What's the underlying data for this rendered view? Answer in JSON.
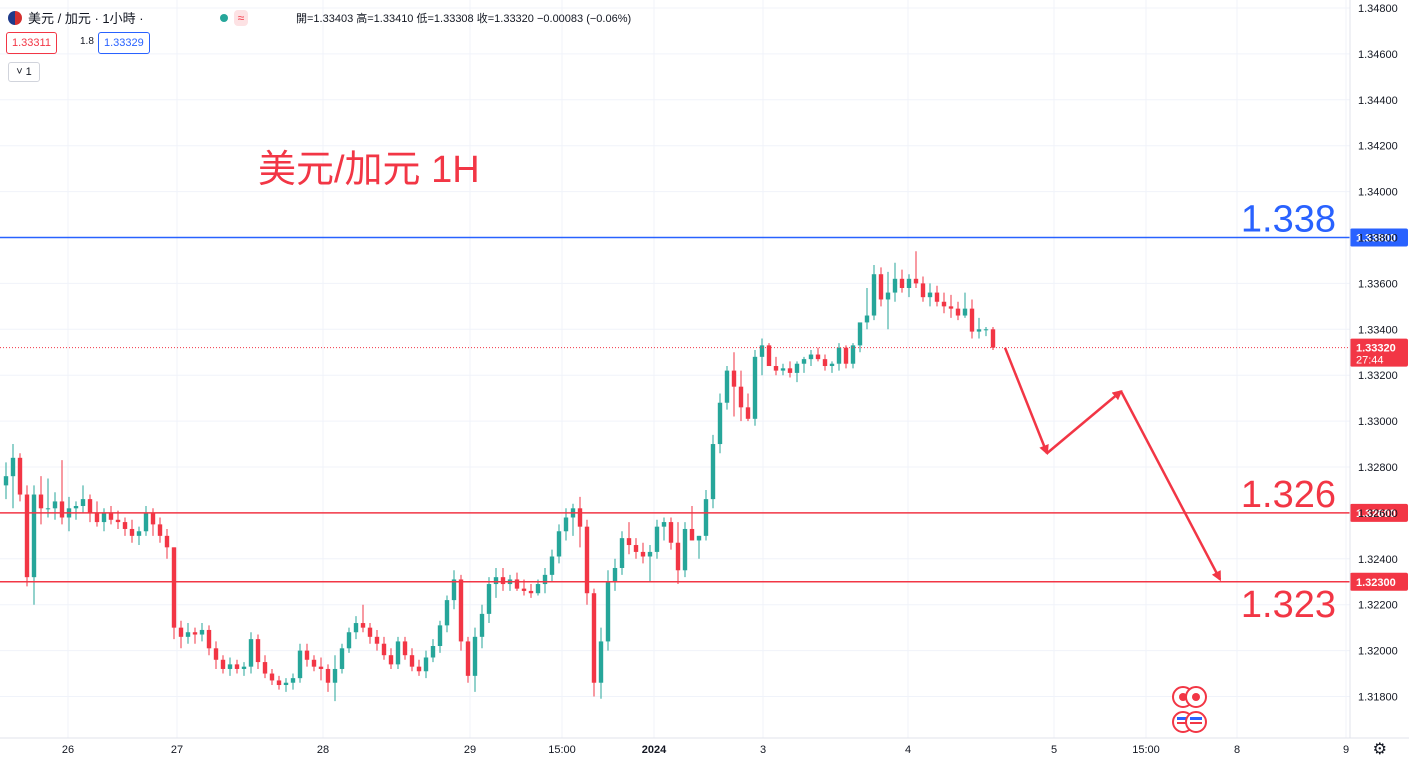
{
  "header": {
    "symbol": "美元 / 加元 · 1小時 ·",
    "ohlc_text": "開=1.33403 高=1.33410 低=1.33308 收=1.33320 −0.00083 (−0.06%)",
    "bid": "1.33311",
    "spread": "1.8",
    "ask": "1.33329",
    "toggle": "˅ 1"
  },
  "colors": {
    "up": "#26a69a",
    "down": "#f23645",
    "blue": "#2962ff",
    "grid": "#f0f3fa"
  },
  "chart_data": {
    "type": "candlestick",
    "title": "美元/加元 1H",
    "ylim": [
      1.317,
      1.348
    ],
    "yticks": [
      1.318,
      1.32,
      1.322,
      1.324,
      1.326,
      1.328,
      1.33,
      1.332,
      1.334,
      1.336,
      1.338,
      1.34,
      1.342,
      1.344,
      1.346,
      1.348
    ],
    "ytick_labels": [
      "1.31800",
      "1.32000",
      "1.32200",
      "1.32400",
      "1.32600",
      "1.32800",
      "1.33000",
      "1.33200",
      "1.33400",
      "1.33600",
      "1.33800",
      "1.34000",
      "1.34200",
      "1.34400",
      "1.34600",
      "1.34800"
    ],
    "xticks": [
      "26",
      "27",
      "28",
      "29",
      "15:00",
      "2024",
      "3",
      "4",
      "5",
      "15:00",
      "8",
      "9"
    ],
    "horizontal_lines": [
      {
        "value": 1.338,
        "label": "1.338",
        "tag": "1.33800",
        "color": "#2962ff"
      },
      {
        "value": 1.326,
        "label": "1.326",
        "tag": "1.32600",
        "color": "#f23645"
      },
      {
        "value": 1.323,
        "label": "1.323",
        "tag": "1.32300",
        "color": "#f23645"
      }
    ],
    "last_price": {
      "value": 1.3332,
      "tag": "1.33320",
      "countdown": "27:44"
    },
    "projection": [
      [
        1.3332,
        1.3286,
        1.3313,
        1.3231
      ]
    ],
    "candles": [
      [
        1.3272,
        1.3282,
        1.3266,
        1.3276
      ],
      [
        1.3276,
        1.329,
        1.3262,
        1.3284
      ],
      [
        1.3284,
        1.3286,
        1.3265,
        1.3268
      ],
      [
        1.3268,
        1.3272,
        1.3228,
        1.3232
      ],
      [
        1.3232,
        1.3272,
        1.322,
        1.3268
      ],
      [
        1.3268,
        1.3276,
        1.3255,
        1.3262
      ],
      [
        1.3262,
        1.3275,
        1.3258,
        1.3262
      ],
      [
        1.3262,
        1.3269,
        1.3257,
        1.3265
      ],
      [
        1.3265,
        1.3283,
        1.3255,
        1.3258
      ],
      [
        1.3258,
        1.3267,
        1.3252,
        1.3262
      ],
      [
        1.3262,
        1.3265,
        1.3257,
        1.3263
      ],
      [
        1.3263,
        1.3272,
        1.326,
        1.3266
      ],
      [
        1.3266,
        1.3268,
        1.3256,
        1.326
      ],
      [
        1.326,
        1.3265,
        1.3254,
        1.3256
      ],
      [
        1.3256,
        1.3262,
        1.3252,
        1.326
      ],
      [
        1.326,
        1.3263,
        1.3255,
        1.3257
      ],
      [
        1.3257,
        1.3261,
        1.3253,
        1.3256
      ],
      [
        1.3256,
        1.3258,
        1.325,
        1.3253
      ],
      [
        1.3253,
        1.3257,
        1.3247,
        1.325
      ],
      [
        1.325,
        1.3254,
        1.3246,
        1.3252
      ],
      [
        1.3252,
        1.3263,
        1.325,
        1.326
      ],
      [
        1.326,
        1.3262,
        1.325,
        1.3255
      ],
      [
        1.3255,
        1.3258,
        1.3247,
        1.325
      ],
      [
        1.325,
        1.3253,
        1.324,
        1.3245
      ],
      [
        1.3245,
        1.3245,
        1.3205,
        1.321
      ],
      [
        1.321,
        1.3213,
        1.3201,
        1.3206
      ],
      [
        1.3206,
        1.3212,
        1.3203,
        1.3208
      ],
      [
        1.3208,
        1.321,
        1.3203,
        1.3207
      ],
      [
        1.3207,
        1.3212,
        1.3204,
        1.3209
      ],
      [
        1.3209,
        1.3211,
        1.3198,
        1.3201
      ],
      [
        1.3201,
        1.3204,
        1.3192,
        1.3196
      ],
      [
        1.3196,
        1.3198,
        1.319,
        1.3192
      ],
      [
        1.3192,
        1.3197,
        1.3189,
        1.3194
      ],
      [
        1.3194,
        1.3196,
        1.319,
        1.3192
      ],
      [
        1.3192,
        1.3195,
        1.3189,
        1.3193
      ],
      [
        1.3193,
        1.3208,
        1.319,
        1.3205
      ],
      [
        1.3205,
        1.3207,
        1.3192,
        1.3195
      ],
      [
        1.3195,
        1.3198,
        1.3188,
        1.319
      ],
      [
        1.319,
        1.3192,
        1.3185,
        1.3187
      ],
      [
        1.3187,
        1.3189,
        1.3183,
        1.3185
      ],
      [
        1.3185,
        1.3188,
        1.3182,
        1.3186
      ],
      [
        1.3186,
        1.319,
        1.3183,
        1.3188
      ],
      [
        1.3188,
        1.3203,
        1.3186,
        1.32
      ],
      [
        1.32,
        1.3203,
        1.3193,
        1.3196
      ],
      [
        1.3196,
        1.3198,
        1.3191,
        1.3193
      ],
      [
        1.3193,
        1.3197,
        1.3187,
        1.3192
      ],
      [
        1.3192,
        1.3194,
        1.3182,
        1.3186
      ],
      [
        1.3186,
        1.3198,
        1.3178,
        1.3192
      ],
      [
        1.3192,
        1.3203,
        1.319,
        1.3201
      ],
      [
        1.3201,
        1.321,
        1.3199,
        1.3208
      ],
      [
        1.3208,
        1.3215,
        1.3205,
        1.3212
      ],
      [
        1.3212,
        1.322,
        1.3208,
        1.321
      ],
      [
        1.321,
        1.3212,
        1.3203,
        1.3206
      ],
      [
        1.3206,
        1.3209,
        1.32,
        1.3203
      ],
      [
        1.3203,
        1.3206,
        1.3196,
        1.3198
      ],
      [
        1.3198,
        1.3201,
        1.3192,
        1.3194
      ],
      [
        1.3194,
        1.3206,
        1.3192,
        1.3204
      ],
      [
        1.3204,
        1.3206,
        1.3196,
        1.3198
      ],
      [
        1.3198,
        1.3201,
        1.3191,
        1.3193
      ],
      [
        1.3193,
        1.3196,
        1.3189,
        1.3191
      ],
      [
        1.3191,
        1.32,
        1.3188,
        1.3197
      ],
      [
        1.3197,
        1.3205,
        1.3195,
        1.3202
      ],
      [
        1.3202,
        1.3213,
        1.3199,
        1.3211
      ],
      [
        1.3211,
        1.3224,
        1.3208,
        1.3222
      ],
      [
        1.3222,
        1.3235,
        1.3218,
        1.3231
      ],
      [
        1.3231,
        1.3233,
        1.32,
        1.3204
      ],
      [
        1.3204,
        1.3206,
        1.3186,
        1.3189
      ],
      [
        1.3189,
        1.321,
        1.3182,
        1.3206
      ],
      [
        1.3206,
        1.322,
        1.3201,
        1.3216
      ],
      [
        1.3216,
        1.3232,
        1.3212,
        1.3229
      ],
      [
        1.3229,
        1.3236,
        1.3223,
        1.3232
      ],
      [
        1.3232,
        1.3236,
        1.3226,
        1.3229
      ],
      [
        1.3229,
        1.3233,
        1.3226,
        1.3231
      ],
      [
        1.3231,
        1.3234,
        1.3226,
        1.3227
      ],
      [
        1.3227,
        1.3231,
        1.3224,
        1.3226
      ],
      [
        1.3226,
        1.3229,
        1.3223,
        1.3225
      ],
      [
        1.3225,
        1.3231,
        1.3224,
        1.3229
      ],
      [
        1.3229,
        1.3236,
        1.3225,
        1.3233
      ],
      [
        1.3233,
        1.3244,
        1.323,
        1.3241
      ],
      [
        1.3241,
        1.3255,
        1.3238,
        1.3252
      ],
      [
        1.3252,
        1.3262,
        1.3248,
        1.3258
      ],
      [
        1.3258,
        1.3264,
        1.325,
        1.3262
      ],
      [
        1.3262,
        1.3267,
        1.3245,
        1.3254
      ],
      [
        1.3254,
        1.3257,
        1.322,
        1.3225
      ],
      [
        1.3225,
        1.3227,
        1.318,
        1.3186
      ],
      [
        1.3186,
        1.321,
        1.3179,
        1.3204
      ],
      [
        1.3204,
        1.3235,
        1.32,
        1.323
      ],
      [
        1.323,
        1.324,
        1.3226,
        1.3236
      ],
      [
        1.3236,
        1.3252,
        1.3233,
        1.3249
      ],
      [
        1.3249,
        1.3256,
        1.3242,
        1.3246
      ],
      [
        1.3246,
        1.3249,
        1.324,
        1.3243
      ],
      [
        1.3243,
        1.3247,
        1.3238,
        1.3241
      ],
      [
        1.3241,
        1.3246,
        1.323,
        1.3243
      ],
      [
        1.3243,
        1.3257,
        1.324,
        1.3254
      ],
      [
        1.3254,
        1.3258,
        1.3248,
        1.3256
      ],
      [
        1.3256,
        1.3258,
        1.3244,
        1.3247
      ],
      [
        1.3247,
        1.3256,
        1.3229,
        1.3235
      ],
      [
        1.3235,
        1.3256,
        1.3232,
        1.3253
      ],
      [
        1.3253,
        1.3263,
        1.3248,
        1.3248
      ],
      [
        1.3248,
        1.325,
        1.324,
        1.325
      ],
      [
        1.325,
        1.327,
        1.3248,
        1.3266
      ],
      [
        1.3266,
        1.3294,
        1.3262,
        1.329
      ],
      [
        1.329,
        1.3312,
        1.3286,
        1.3308
      ],
      [
        1.3308,
        1.3324,
        1.3305,
        1.3322
      ],
      [
        1.3322,
        1.333,
        1.3302,
        1.3315
      ],
      [
        1.3315,
        1.3322,
        1.33,
        1.3306
      ],
      [
        1.3306,
        1.3312,
        1.33,
        1.3301
      ],
      [
        1.3301,
        1.3331,
        1.3298,
        1.3328
      ],
      [
        1.3328,
        1.3336,
        1.332,
        1.3333
      ],
      [
        1.3333,
        1.3334,
        1.3324,
        1.3324
      ],
      [
        1.3324,
        1.3328,
        1.332,
        1.3322
      ],
      [
        1.3322,
        1.3325,
        1.332,
        1.3323
      ],
      [
        1.3323,
        1.3326,
        1.3319,
        1.3321
      ],
      [
        1.3321,
        1.3326,
        1.3317,
        1.3325
      ],
      [
        1.3325,
        1.3328,
        1.3321,
        1.3327
      ],
      [
        1.3327,
        1.3331,
        1.3324,
        1.3329
      ],
      [
        1.3329,
        1.3332,
        1.3326,
        1.3327
      ],
      [
        1.3327,
        1.3329,
        1.3322,
        1.3324
      ],
      [
        1.3324,
        1.3326,
        1.3321,
        1.3325
      ],
      [
        1.3325,
        1.3334,
        1.3322,
        1.3332
      ],
      [
        1.3332,
        1.3333,
        1.3323,
        1.3325
      ],
      [
        1.3325,
        1.3334,
        1.3323,
        1.3333
      ],
      [
        1.3333,
        1.3341,
        1.333,
        1.3343
      ],
      [
        1.3343,
        1.3358,
        1.334,
        1.3346
      ],
      [
        1.3346,
        1.3368,
        1.3344,
        1.3364
      ],
      [
        1.3364,
        1.3367,
        1.335,
        1.3353
      ],
      [
        1.3353,
        1.3365,
        1.334,
        1.3356
      ],
      [
        1.3356,
        1.3369,
        1.3352,
        1.3362
      ],
      [
        1.3362,
        1.3366,
        1.3356,
        1.3358
      ],
      [
        1.3358,
        1.3364,
        1.3354,
        1.3362
      ],
      [
        1.3362,
        1.3374,
        1.3358,
        1.336
      ],
      [
        1.336,
        1.3363,
        1.3352,
        1.3354
      ],
      [
        1.3354,
        1.336,
        1.335,
        1.3356
      ],
      [
        1.3356,
        1.3359,
        1.335,
        1.3352
      ],
      [
        1.3352,
        1.3356,
        1.3347,
        1.335
      ],
      [
        1.335,
        1.3355,
        1.3345,
        1.3349
      ],
      [
        1.3349,
        1.3352,
        1.3344,
        1.3346
      ],
      [
        1.3346,
        1.3356,
        1.3345,
        1.3349
      ],
      [
        1.3349,
        1.3353,
        1.3336,
        1.3339
      ],
      [
        1.3339,
        1.3345,
        1.3336,
        1.334
      ],
      [
        1.334,
        1.3341,
        1.3337,
        1.334
      ],
      [
        1.334,
        1.3341,
        1.3331,
        1.3332
      ]
    ]
  }
}
